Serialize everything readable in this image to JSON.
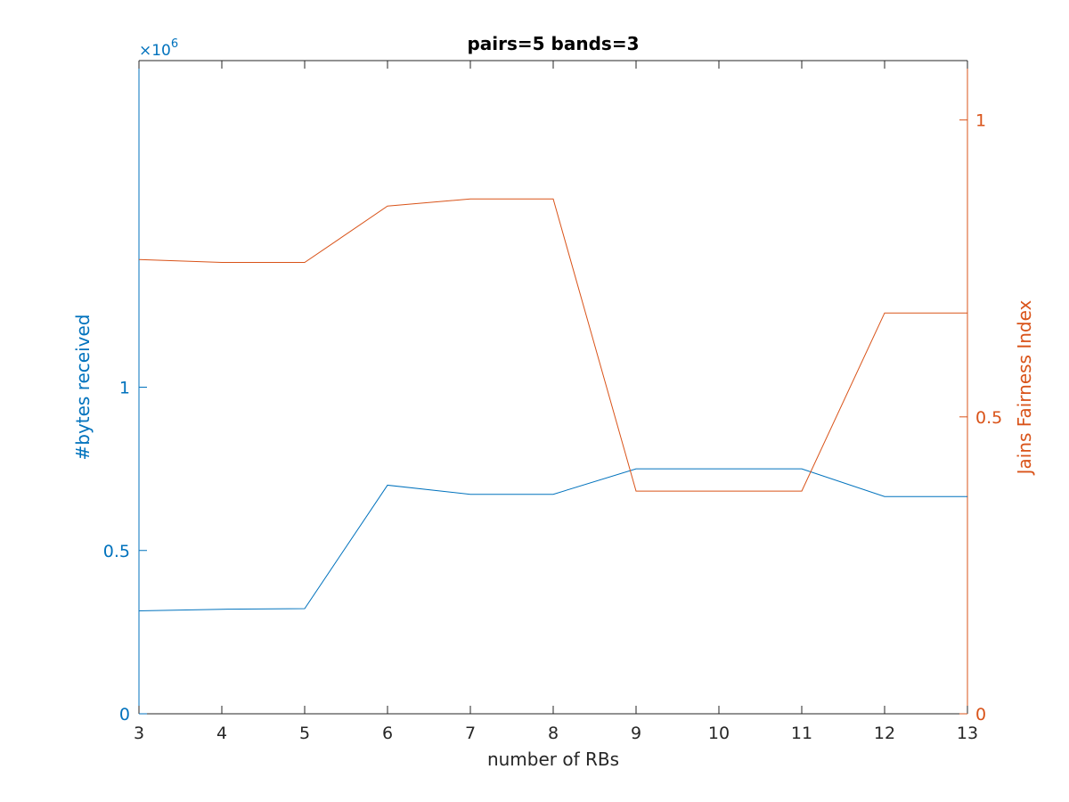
{
  "chart_data": {
    "type": "line",
    "title": "pairs=5 bands=3",
    "xlabel": "number of RBs",
    "x": [
      3,
      4,
      5,
      6,
      7,
      8,
      9,
      10,
      11,
      12,
      13
    ],
    "xlim": [
      3,
      13
    ],
    "xticks": [
      "3",
      "4",
      "5",
      "6",
      "7",
      "8",
      "9",
      "10",
      "11",
      "12",
      "13"
    ],
    "y_left": {
      "label": "#bytes received",
      "exponent_label": "×10",
      "exponent_power": "6",
      "lim": [
        0,
        2000000
      ],
      "ticks": [
        0,
        500000,
        1000000
      ],
      "tick_labels": [
        "0",
        "0.5",
        "1"
      ],
      "color": "#0072BD"
    },
    "y_right": {
      "label": "Jains Fairness Index",
      "lim": [
        0,
        1.1
      ],
      "ticks": [
        0,
        0.5,
        1
      ],
      "tick_labels": [
        "0",
        "0.5",
        "1"
      ],
      "color": "#D95319"
    },
    "series": [
      {
        "axis": "left",
        "color": "#0072BD",
        "values": [
          315000,
          320000,
          322000,
          700000,
          672000,
          672000,
          750000,
          750000,
          750000,
          665000,
          665000
        ]
      },
      {
        "axis": "right",
        "color": "#D95319",
        "values": [
          0.765,
          0.76,
          0.76,
          0.855,
          0.867,
          0.867,
          0.375,
          0.375,
          0.375,
          0.675,
          0.675
        ]
      }
    ],
    "grid": false
  }
}
